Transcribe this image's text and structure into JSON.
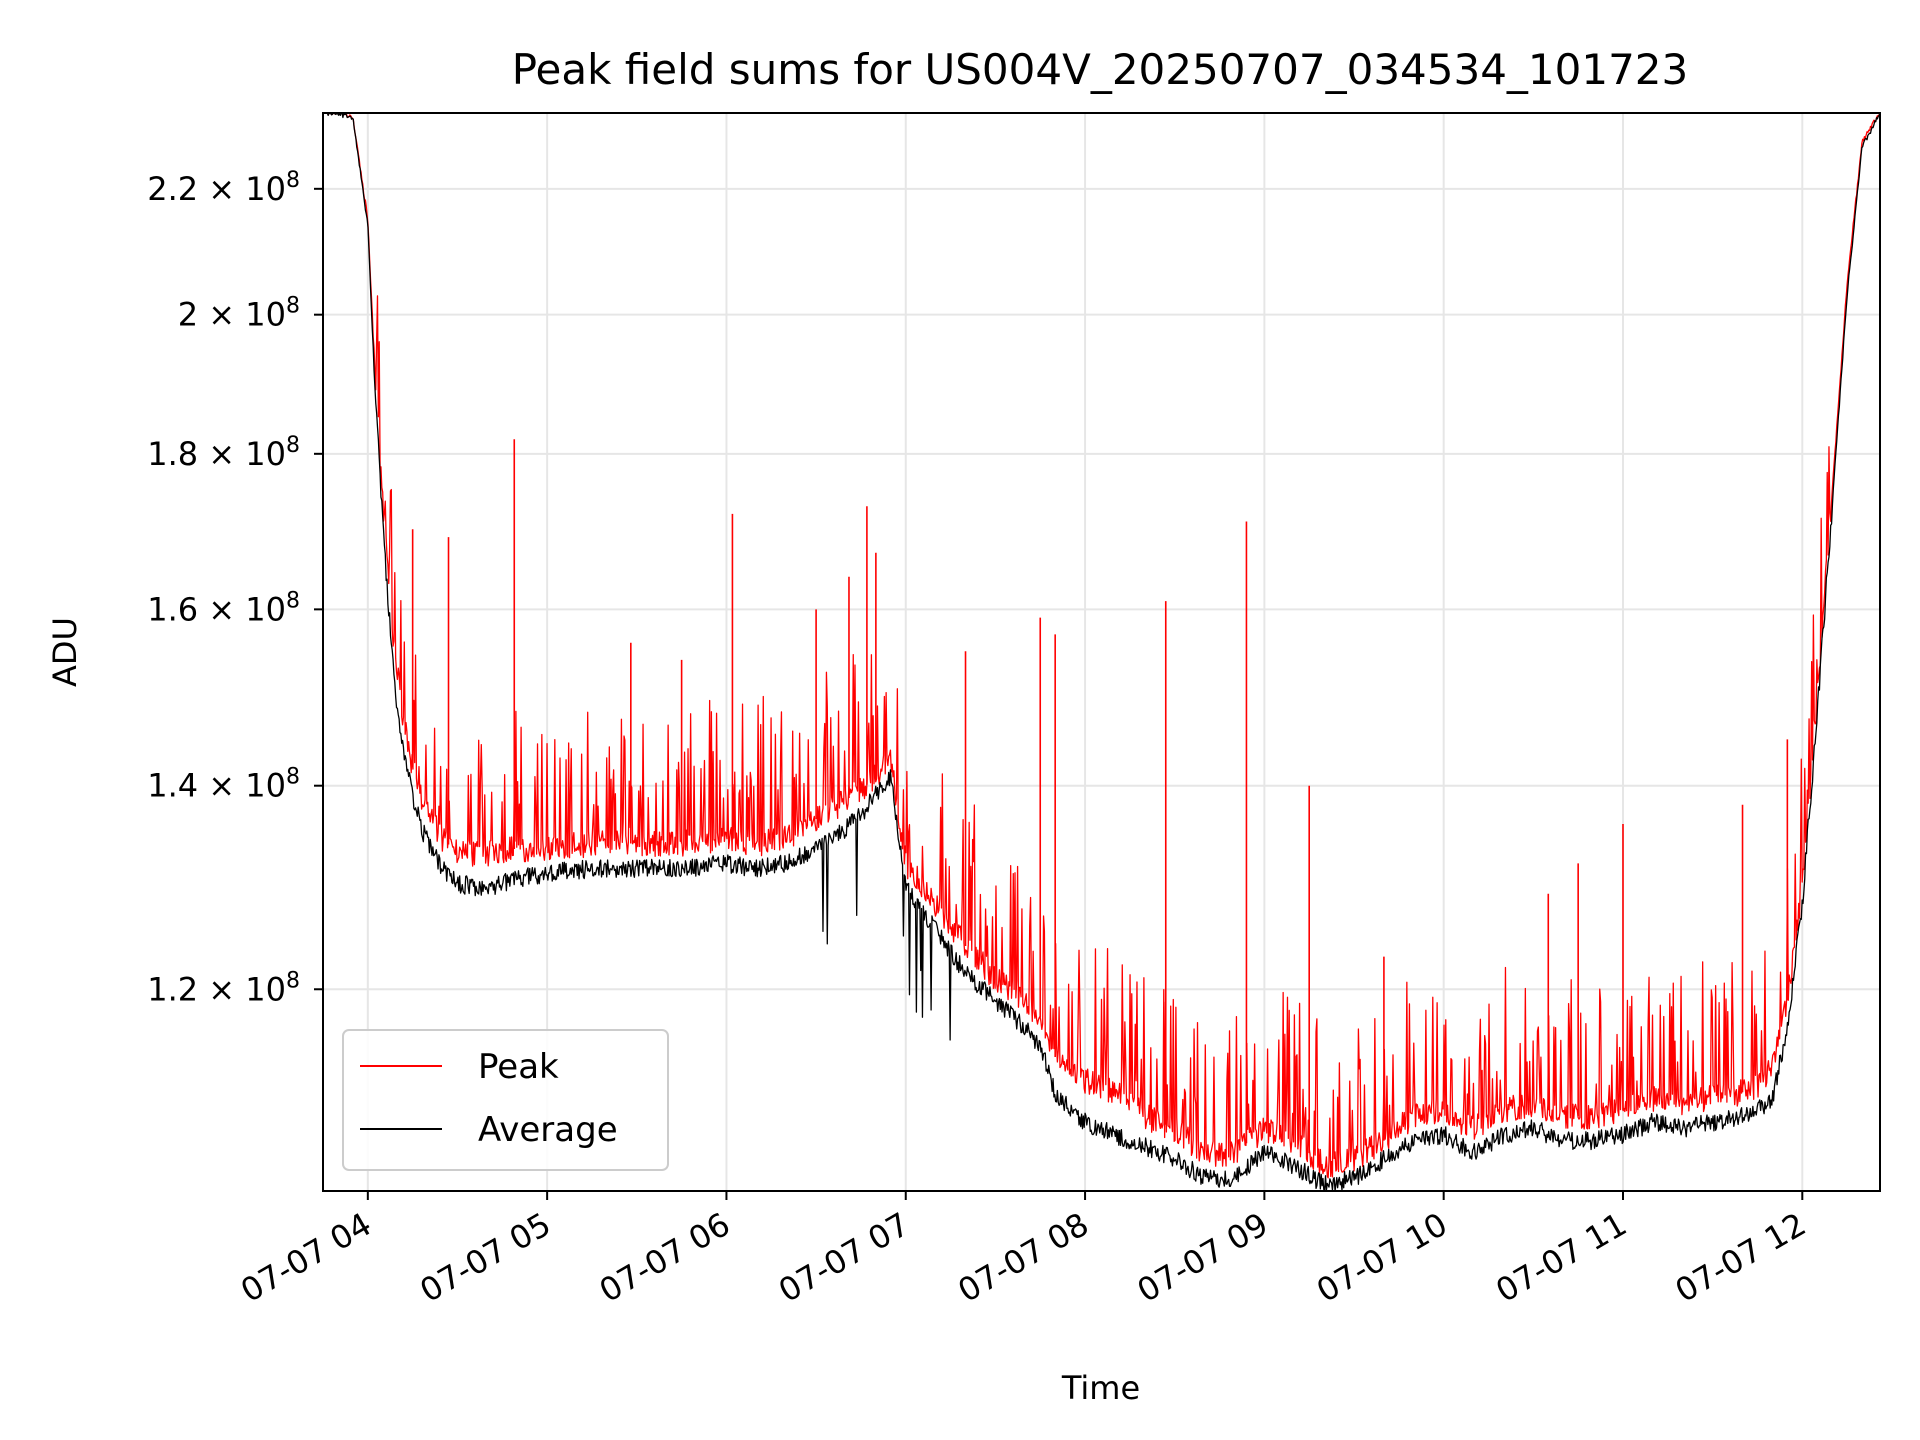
{
  "chart_data": {
    "type": "line",
    "title": "Peak field sums for US004V_20250707_034534_101723",
    "xlabel": "Time",
    "ylabel": "ADU",
    "yscale": "log",
    "ylim": [
      103000000,
      233000000
    ],
    "xlim": [
      "2025-07-07 03:45",
      "2025-07-07 12:26"
    ],
    "grid": true,
    "legend_position": "lower-left",
    "x_ticks": [
      "07-07 04",
      "07-07 05",
      "07-07 06",
      "07-07 07",
      "07-07 08",
      "07-07 09",
      "07-07 10",
      "07-07 11",
      "07-07 12"
    ],
    "y_ticks": [
      {
        "value": 120000000,
        "mantissa": "1.2",
        "exp": "8"
      },
      {
        "value": 140000000,
        "mantissa": "1.4",
        "exp": "8"
      },
      {
        "value": 160000000,
        "mantissa": "1.6",
        "exp": "8"
      },
      {
        "value": 180000000,
        "mantissa": "1.8",
        "exp": "8"
      },
      {
        "value": 200000000,
        "mantissa": "2",
        "exp": "8"
      },
      {
        "value": 220000000,
        "mantissa": "2.2",
        "exp": "8"
      }
    ],
    "times_of_day": [
      "03:45",
      "03:50",
      "03:55",
      "04:00",
      "04:02",
      "04:04",
      "04:06",
      "04:08",
      "04:10",
      "04:12",
      "04:15",
      "04:18",
      "04:21",
      "04:25",
      "04:30",
      "04:40",
      "04:50",
      "05:00",
      "05:15",
      "05:30",
      "05:45",
      "06:00",
      "06:10",
      "06:20",
      "06:30",
      "06:35",
      "06:40",
      "06:45",
      "06:50",
      "06:55",
      "07:00",
      "07:10",
      "07:20",
      "07:30",
      "07:40",
      "07:45",
      "07:50",
      "08:00",
      "08:10",
      "08:20",
      "08:30",
      "08:40",
      "08:50",
      "09:00",
      "09:10",
      "09:20",
      "09:30",
      "09:40",
      "09:50",
      "10:00",
      "10:10",
      "10:20",
      "10:30",
      "10:40",
      "10:50",
      "11:00",
      "11:10",
      "11:20",
      "11:30",
      "11:40",
      "11:45",
      "11:50",
      "11:55",
      "12:00",
      "12:05",
      "12:10",
      "12:15",
      "12:20",
      "12:26"
    ],
    "series": [
      {
        "name": "Peak",
        "color": "#ff0000",
        "baseline": [
          233000000,
          233000000,
          232000000,
          215000000,
          195000000,
          180000000,
          168000000,
          158000000,
          152000000,
          147000000,
          142000000,
          138500000,
          136500000,
          134500000,
          133000000,
          133000000,
          133500000,
          133500000,
          134000000,
          134000000,
          134000000,
          134500000,
          134000000,
          134500000,
          136500000,
          137500000,
          138500000,
          139500000,
          141000000,
          143000000,
          132000000,
          128000000,
          124000000,
          121000000,
          119000000,
          117500000,
          114000000,
          112000000,
          111000000,
          109000000,
          108000000,
          106000000,
          106000000,
          108000000,
          107000000,
          105000000,
          105500000,
          107000000,
          109000000,
          109500000,
          108000000,
          109500000,
          110000000,
          109000000,
          109000000,
          109500000,
          110500000,
          110000000,
          110500000,
          111000000,
          111500000,
          113000000,
          119000000,
          130000000,
          150000000,
          175000000,
          205000000,
          228000000,
          233000000
        ],
        "spikes": [
          {
            "x": "04:15",
            "y": 170000000
          },
          {
            "x": "04:27",
            "y": 169000000
          },
          {
            "x": "04:49",
            "y": 182000000
          },
          {
            "x": "05:28",
            "y": 156000000
          },
          {
            "x": "05:45",
            "y": 154000000
          },
          {
            "x": "06:02",
            "y": 172000000
          },
          {
            "x": "06:30",
            "y": 160000000
          },
          {
            "x": "06:41",
            "y": 164000000
          },
          {
            "x": "06:47",
            "y": 173000000
          },
          {
            "x": "06:50",
            "y": 167000000
          },
          {
            "x": "07:20",
            "y": 155000000
          },
          {
            "x": "07:45",
            "y": 159000000
          },
          {
            "x": "07:50",
            "y": 157000000
          },
          {
            "x": "08:27",
            "y": 161000000
          },
          {
            "x": "08:54",
            "y": 171000000
          },
          {
            "x": "09:15",
            "y": 140000000
          },
          {
            "x": "09:40",
            "y": 123000000
          },
          {
            "x": "10:35",
            "y": 129000000
          },
          {
            "x": "10:45",
            "y": 132000000
          },
          {
            "x": "11:00",
            "y": 136000000
          },
          {
            "x": "11:40",
            "y": 138000000
          },
          {
            "x": "11:55",
            "y": 145000000
          }
        ]
      },
      {
        "name": "Average",
        "color": "#000000",
        "values": [
          233000000,
          233000000,
          232000000,
          214000000,
          193000000,
          178000000,
          165000000,
          155000000,
          148000000,
          144000000,
          139000000,
          135500000,
          133500000,
          131500000,
          130000000,
          129500000,
          130500000,
          131000000,
          131500000,
          131500000,
          131500000,
          132000000,
          131500000,
          132000000,
          133500000,
          134500000,
          135500000,
          137000000,
          139000000,
          141000000,
          129500000,
          125500000,
          121500000,
          119000000,
          116500000,
          115000000,
          111000000,
          108500000,
          107500000,
          106500000,
          105500000,
          104000000,
          104000000,
          106000000,
          105000000,
          103500000,
          104000000,
          105500000,
          107000000,
          107500000,
          106000000,
          107500000,
          108000000,
          107000000,
          107000000,
          107500000,
          108500000,
          108000000,
          108500000,
          109000000,
          109500000,
          110500000,
          116500000,
          128000000,
          148000000,
          173000000,
          203000000,
          227000000,
          233000000
        ]
      }
    ]
  }
}
